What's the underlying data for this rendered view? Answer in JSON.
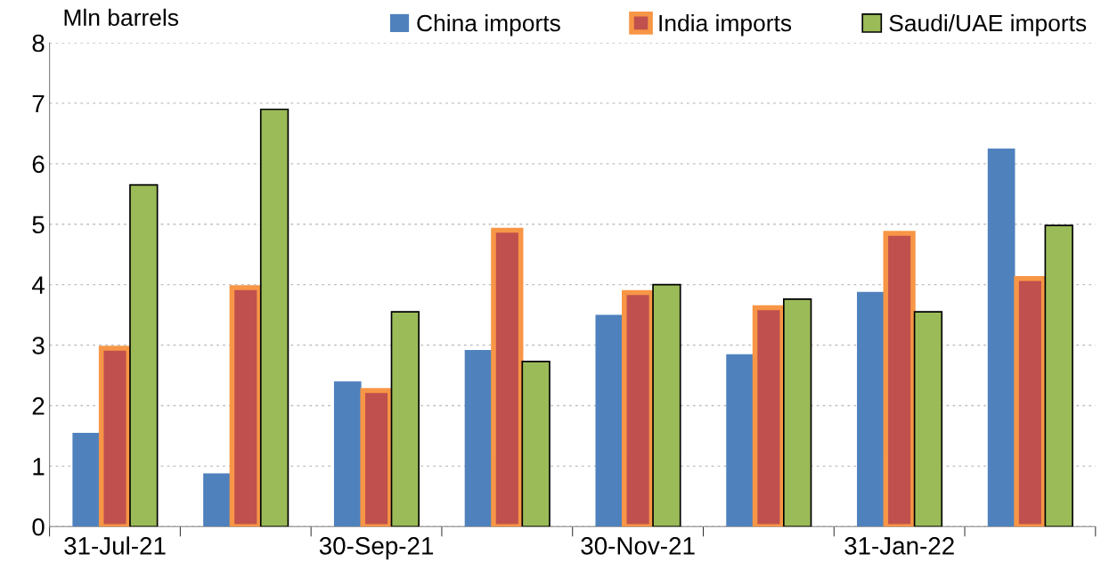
{
  "chart_data": {
    "type": "bar",
    "ylabel": "Mln barrels",
    "categories": [
      "31-Jul-21",
      null,
      "30-Sep-21",
      null,
      "30-Nov-21",
      null,
      "31-Jan-22",
      null
    ],
    "series": [
      {
        "name": "China imports",
        "color": "#4f81bd",
        "values": [
          1.55,
          0.88,
          2.4,
          2.92,
          3.5,
          2.85,
          3.88,
          6.25
        ]
      },
      {
        "name": "India imports",
        "color": "#c0504d",
        "values": [
          2.95,
          3.95,
          2.25,
          4.9,
          3.87,
          3.62,
          4.85,
          4.1
        ]
      },
      {
        "name": "Saudi/UAE imports",
        "color": "#9bbb59",
        "values": [
          5.65,
          6.9,
          3.55,
          2.73,
          4.0,
          3.76,
          3.55,
          4.98
        ]
      }
    ],
    "ylim": [
      0,
      8
    ],
    "yticks": [
      0,
      1,
      2,
      3,
      4,
      5,
      6,
      7,
      8
    ],
    "grid": "y",
    "legend": "top"
  }
}
